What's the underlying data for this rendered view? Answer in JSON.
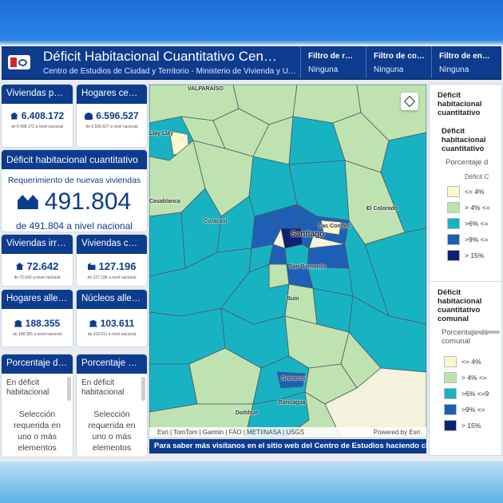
{
  "header": {
    "title": "Déficit Habitacional Cuantitativo Cen…",
    "subtitle": "Centro de Estudios de Ciudad y Territorio - Ministerio de Vivienda y Urb…",
    "filters": [
      {
        "label": "Filtro de r…",
        "value": "Ninguna"
      },
      {
        "label": "Filtro de co…",
        "value": "Ninguna"
      },
      {
        "label": "Filtro de en…",
        "value": "Ninguna"
      }
    ]
  },
  "cards": {
    "viviendas_par": {
      "title": "Viviendas par…",
      "value": "6.408.172",
      "sub": "de 6.408.172 a nivel nacional",
      "icon": "house-icon"
    },
    "hogares_cen": {
      "title": "Hogares cen…",
      "value": "6.596.527",
      "sub": "de 6.596.527 a nivel nacional",
      "icon": "people-icon"
    },
    "deficit": {
      "title": "Déficit habitacional cuantitativo",
      "req": "Requerimiento de nuevas viviendas",
      "value": "491.804",
      "sub": "de 491.804 a nivel nacional",
      "icon": "neighborhood-icon"
    },
    "viviendas_irr": {
      "title": "Viviendas irr…",
      "value": "72.642",
      "sub": "de 72.642 a nivel nacional",
      "icon": "house-icon"
    },
    "viviendas_co": {
      "title": "Viviendas co…",
      "value": "127.196",
      "sub": "de 127.196 a nivel nacional",
      "icon": "building-icon"
    },
    "hogares_alle": {
      "title": "Hogares alle…",
      "value": "188.355",
      "sub": "de 188.355 a nivel nacional",
      "icon": "bank-icon"
    },
    "nucleos_alle": {
      "title": "Núcleos alle…",
      "value": "103.611",
      "sub": "de 103.611 a nivel nacional",
      "icon": "bank-icon"
    },
    "pct_left": {
      "title": "Porcentaje d…",
      "label": "En déficit habitacional",
      "msg": "Selección requerida en uno o más elementos"
    },
    "pct_right": {
      "title": "Porcentaje d…",
      "label": "En déficit habitacional",
      "msg": "Selección requerida en uno o más elementos"
    }
  },
  "map": {
    "places": {
      "valparaiso": "VALPARAÍSO",
      "el_colorado": "El Colorado",
      "santiago": "Santiago",
      "las_condes": "Las Condes",
      "san_bernardo": "San Bernardo",
      "buin": "Buin",
      "curacavi": "Curacaví",
      "casablanca": "Casablanca",
      "graneros": "Graneros",
      "rancagua": "Rancagua",
      "doñihue": "Doñihue",
      "llay_llay": "Llay Llay"
    },
    "attribution": "Esri | TomTom | Garmin | FAO | METI/NASA | USGS",
    "powered": "Powered by Esri",
    "banner": "Para saber más visítanos en el sitio web del Centro de Estudios haciendo clic..."
  },
  "legend": {
    "title": "Déficit habitacional cuantitativo",
    "group1": {
      "title": "Déficit habitacional cuantitativo",
      "desc": "Porcentaje d",
      "field": "Déficit C",
      "items": [
        "<= 4%",
        "> 4% <=",
        ">6% <=",
        ">9% <=",
        "> 15%"
      ]
    },
    "group2": {
      "title": "Déficit habitacional cuantitativo comunal",
      "desc": "Porcentaje dé comunal",
      "items": [
        "<= 4%",
        "> 4% <=",
        ">6% <=9",
        ">9% <=",
        "> 15%"
      ]
    },
    "colors": [
      "#fbf8cd",
      "#bfe3b0",
      "#18b3c3",
      "#1d5fb5",
      "#0d2170"
    ]
  }
}
